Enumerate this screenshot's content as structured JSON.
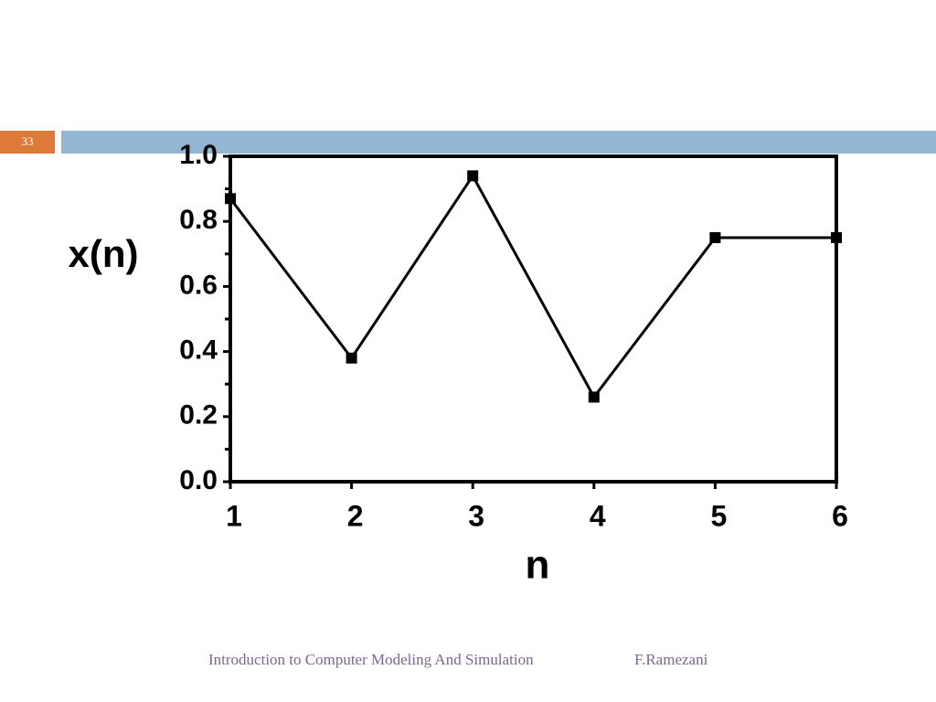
{
  "slide": {
    "number": "33",
    "footer": "Introduction to Computer Modeling And Simulation",
    "author": "F.Ramezani"
  },
  "chart_data": {
    "type": "line",
    "xlabel": "n",
    "ylabel": "x(n)",
    "x": [
      1,
      2,
      3,
      4,
      5,
      6
    ],
    "series": [
      {
        "color": "#000000",
        "values": [
          0.87,
          0.38,
          0.94,
          0.26,
          0.75,
          0.75
        ]
      }
    ],
    "xlim": [
      1,
      6
    ],
    "xticks": [
      1,
      2,
      3,
      4,
      5,
      6
    ],
    "ylim": [
      0,
      1
    ],
    "yticks": [
      {
        "value": 0,
        "label": "0.0"
      },
      {
        "value": 0.2,
        "label": "0.2"
      },
      {
        "value": 0.4,
        "label": "0.4"
      },
      {
        "value": 0.6,
        "label": "0.6"
      },
      {
        "value": 0.8,
        "label": "0.8"
      },
      {
        "value": 1,
        "label": "1.0"
      }
    ],
    "minor_yticks": [
      0.1,
      0.3,
      0.5,
      0.7,
      0.9
    ],
    "markers": "square"
  }
}
